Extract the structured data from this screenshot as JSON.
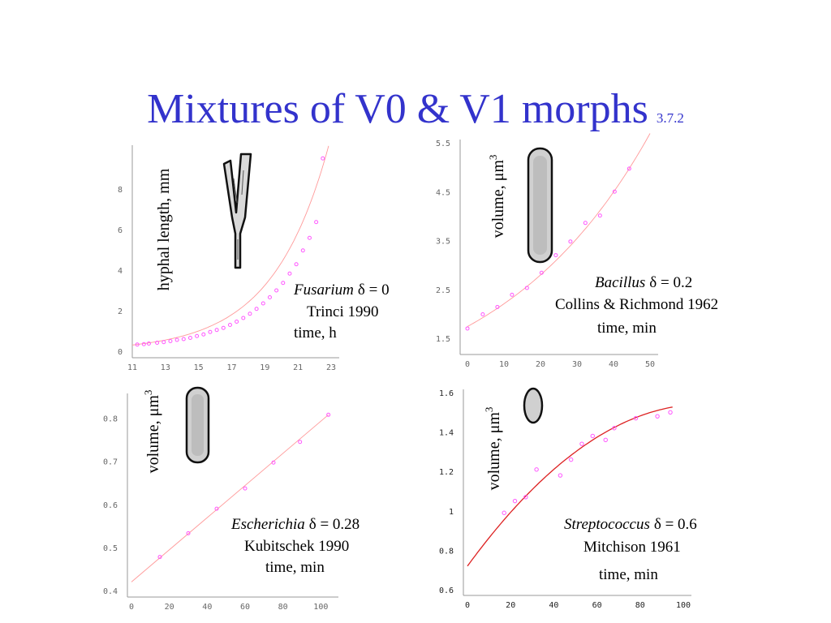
{
  "slide": {
    "title": "Mixtures of V0 & V1 morphs",
    "number": "3.7.2"
  },
  "colors": {
    "title": "#3333cc",
    "fit_light": "#ff9999",
    "fit_strong": "#dd2222",
    "points": "#ff55ff"
  },
  "chart_data": [
    {
      "id": "fusarium",
      "type": "scatter",
      "ylabel": "hyphal length, mm",
      "xlabel": "time, h",
      "annotation": {
        "organism": "Fusarium",
        "delta": "δ = 0",
        "source": "Trinci 1990"
      },
      "xlim": [
        11,
        23
      ],
      "ylim": [
        0,
        10
      ],
      "xticks": [
        "11",
        "13",
        "15",
        "17",
        "19",
        "21",
        "23"
      ],
      "yticks": [
        "0",
        "2",
        "4",
        "6",
        "8"
      ],
      "points": {
        "x": [
          11.3,
          11.7,
          12.0,
          12.5,
          12.9,
          13.3,
          13.7,
          14.1,
          14.5,
          14.9,
          15.3,
          15.7,
          16.1,
          16.5,
          16.9,
          17.3,
          17.7,
          18.1,
          18.5,
          18.9,
          19.3,
          19.7,
          20.1,
          20.5,
          20.9,
          21.3,
          21.7,
          22.1,
          22.5
        ],
        "y": [
          0.33,
          0.35,
          0.38,
          0.42,
          0.45,
          0.5,
          0.56,
          0.6,
          0.66,
          0.75,
          0.83,
          0.95,
          1.05,
          1.15,
          1.3,
          1.46,
          1.64,
          1.85,
          2.09,
          2.36,
          2.66,
          3.0,
          3.37,
          3.83,
          4.29,
          4.97,
          5.59,
          6.37,
          9.51
        ]
      },
      "fit": {
        "kind": "exponential",
        "a": 0.307,
        "b": 0.295,
        "x0": 11
      }
    },
    {
      "id": "bacillus",
      "type": "scatter",
      "ylabel": "volume, μm",
      "ylabel_sup": "3",
      "xlabel": "time, min",
      "annotation": {
        "organism": "Bacillus",
        "delta": "δ = 0.2",
        "source": "Collins & Richmond 1962"
      },
      "xlim": [
        0,
        50
      ],
      "ylim": [
        1.5,
        5.5
      ],
      "xticks": [
        "0",
        "10",
        "20",
        "30",
        "40",
        "50"
      ],
      "yticks": [
        "1.5",
        "2.5",
        "3.5",
        "4.5",
        "5.5"
      ],
      "points": {
        "x": [
          0,
          4.2,
          8.2,
          12.2,
          16.3,
          20.3,
          24.2,
          28.2,
          32.3,
          36.3,
          40.3,
          44.3
        ],
        "y": [
          1.7,
          1.99,
          2.14,
          2.39,
          2.53,
          2.84,
          3.2,
          3.48,
          3.86,
          4.01,
          4.5,
          4.97
        ]
      },
      "fit": {
        "kind": "exponential",
        "a": 1.74,
        "b": 0.0237,
        "x0": 0
      }
    },
    {
      "id": "escherichia",
      "type": "scatter",
      "ylabel": "volume, μm",
      "ylabel_sup": "3",
      "xlabel": "time, min",
      "annotation": {
        "organism": "Escherichia",
        "delta": "δ = 0.28",
        "source": "Kubitschek 1990"
      },
      "xlim": [
        0,
        105
      ],
      "ylim": [
        0.4,
        0.85
      ],
      "xticks": [
        "0",
        "20",
        "40",
        "60",
        "80",
        "100"
      ],
      "yticks": [
        "0.4",
        "0.5",
        "0.6",
        "0.7",
        "0.8"
      ],
      "points": {
        "x": [
          15,
          30,
          45,
          60,
          75,
          89,
          104
        ],
        "y": [
          0.478,
          0.533,
          0.59,
          0.637,
          0.697,
          0.745,
          0.808
        ]
      },
      "fit": {
        "kind": "linear",
        "points": [
          [
            0,
            0.42
          ],
          [
            104,
            0.808
          ]
        ]
      }
    },
    {
      "id": "streptococcus",
      "type": "scatter",
      "ylabel": "volume, μm",
      "ylabel_sup": "3",
      "xlabel": "time, min",
      "annotation": {
        "organism": "Streptococcus",
        "delta": "δ = 0.6",
        "source": "Mitchison 1961"
      },
      "xlim": [
        0,
        100
      ],
      "ylim": [
        0.6,
        1.6
      ],
      "xticks": [
        "0",
        "20",
        "40",
        "60",
        "80",
        "100"
      ],
      "yticks": [
        "0.6",
        "0.8",
        "1",
        "1.2",
        "1.4",
        "1.6"
      ],
      "points": {
        "x": [
          17,
          22,
          27,
          32,
          43,
          48,
          53,
          58,
          64,
          68,
          78,
          88,
          94
        ],
        "y": [
          0.99,
          1.05,
          1.07,
          1.21,
          1.18,
          1.26,
          1.34,
          1.38,
          1.36,
          1.42,
          1.47,
          1.48,
          1.5
        ]
      },
      "fit": {
        "kind": "quadratic",
        "a": 0.72,
        "b": 0.015,
        "c": -6.85e-05
      }
    }
  ]
}
